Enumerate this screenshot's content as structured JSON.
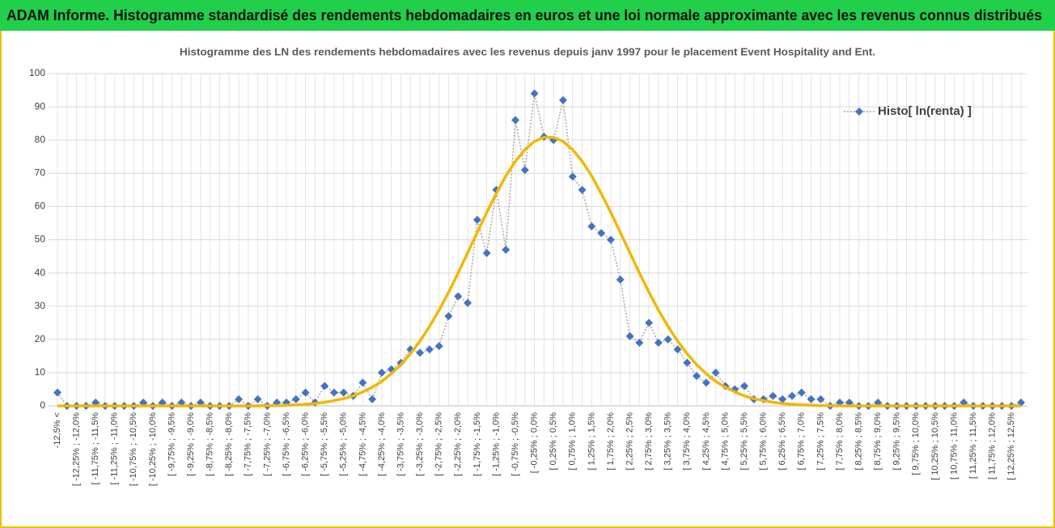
{
  "header": {
    "title": "ADAM Informe. Histogramme standardisé des rendements hebdomadaires en euros et une loi normale approximante avec les revenus connus distribués"
  },
  "chart_data": {
    "type": "line",
    "title": "Histogramme des LN des rendements hebdomadaires avec les revenus depuis janv 1997 pour le placement Event Hospitality  and Ent.",
    "categories": [
      "-12,5% <",
      null,
      "[ -12,25% ; -12,0%",
      null,
      "[ -11,75% ; -11,5%",
      null,
      "[ -11,25% ; -11,0%",
      null,
      "[ -10,75% ; -10,5%",
      null,
      "[ -10,25% ; -10,0%",
      null,
      "[ -9,75% ; -9,5%",
      null,
      "[ -9,25% ; -9,0%",
      null,
      "[ -8,75% ; -8,5%",
      null,
      "[ -8,25% ; -8,0%",
      null,
      "[ -7,75% ; -7,5%",
      null,
      "[ -7,25% ; -7,0%",
      null,
      "[ -6,75% ; -6,5%",
      null,
      "[ -6,25% ; -6,0%",
      null,
      "[ -5,75% ; -5,5%",
      null,
      "[ -5,25% ; -5,0%",
      null,
      "[ -4,75% ; -4,5%",
      null,
      "[ -4,25% ; -4,0%",
      null,
      "[ -3,75% ; -3,5%",
      null,
      "[ -3,25% ; -3,0%",
      null,
      "[ -2,75% ; -2,5%",
      null,
      "[ -2,25% ; -2,0%",
      null,
      "[ -1,75% ; -1,5%",
      null,
      "[ -1,25% ; -1,0%",
      null,
      "[ -0,75% ; -0,5%",
      null,
      "[ -0,25% ; 0,0%",
      null,
      "[ 0,25% ; 0,5%",
      null,
      "[ 0,75% ; 1,0%",
      null,
      "[ 1,25% ; 1,5%",
      null,
      "[ 1,75% ; 2,0%",
      null,
      "[ 2,25% ; 2,5%",
      null,
      "[ 2,75% ; 3,0%",
      null,
      "[ 3,25% ; 3,5%",
      null,
      "[ 3,75% ; 4,0%",
      null,
      "[ 4,25% ; 4,5%",
      null,
      "[ 4,75% ; 5,0%",
      null,
      "[ 5,25% ; 5,5%",
      null,
      "[ 5,75% ; 6,0%",
      null,
      "[ 6,25% ; 6,5%",
      null,
      "[ 6,75% ; 7,0%",
      null,
      "[ 7,25% ; 7,5%",
      null,
      "[ 7,75% ; 8,0%",
      null,
      "[ 8,25% ; 8,5%",
      null,
      "[ 8,75% ; 9,0%",
      null,
      "[ 9,25% ; 9,5%",
      null,
      "[ 9,75% ; 10,0%",
      null,
      "[ 10,25% ; 10,5%",
      null,
      "[ 10,75% ; 11,0%",
      null,
      "[ 11,25% ; 11,5%",
      null,
      "[ 11,75% ; 12,0%",
      null,
      "[ 12,25% ; 12,5%",
      null
    ],
    "series": [
      {
        "name": "Histo[ ln(renta) ]",
        "color": "#4472c4",
        "values": [
          4,
          0,
          0,
          0,
          1,
          0,
          0,
          0,
          0,
          1,
          0,
          1,
          0,
          1,
          0,
          1,
          0,
          0,
          0,
          2,
          0,
          2,
          0,
          1,
          1,
          2,
          4,
          1,
          6,
          4,
          4,
          3,
          7,
          2,
          10,
          11,
          13,
          17,
          16,
          17,
          18,
          27,
          33,
          31,
          56,
          46,
          65,
          47,
          86,
          71,
          94,
          81,
          80,
          92,
          69,
          65,
          54,
          52,
          50,
          38,
          21,
          19,
          25,
          19,
          20,
          17,
          13,
          9,
          7,
          10,
          6,
          5,
          6,
          2,
          2,
          3,
          2,
          3,
          4,
          2,
          2,
          0,
          1,
          1,
          0,
          0,
          1,
          0,
          0,
          0,
          0,
          0,
          0,
          0,
          0,
          1,
          0,
          0,
          0,
          0,
          0,
          1
        ]
      },
      {
        "color": "#f2b705",
        "values": [
          0,
          0,
          0,
          0,
          0,
          0,
          0,
          0,
          0,
          0,
          0,
          0,
          0,
          0,
          0,
          0,
          0,
          0,
          0,
          0,
          0,
          0,
          0.1,
          0.1,
          0.2,
          0.3,
          0.5,
          0.7,
          1.1,
          1.6,
          2.2,
          3.0,
          4.2,
          5.6,
          7.4,
          9.7,
          12.4,
          15.7,
          19.5,
          23.9,
          28.8,
          34.2,
          40.0,
          46.1,
          52.2,
          58.2,
          63.9,
          69.2,
          73.6,
          77.1,
          79.6,
          80.8,
          80.8,
          79.6,
          77.1,
          73.6,
          69.2,
          63.9,
          58.2,
          52.2,
          46.1,
          40.0,
          34.2,
          28.8,
          23.9,
          19.5,
          15.7,
          12.4,
          9.7,
          7.4,
          5.6,
          4.2,
          3.0,
          2.2,
          1.6,
          1.1,
          0.7,
          0.5,
          0.3,
          0.2,
          0.1,
          0.1,
          0,
          0,
          0,
          0,
          0,
          0,
          0,
          0,
          0,
          0,
          0,
          0,
          0,
          0,
          0,
          0,
          0,
          0,
          0,
          0
        ]
      }
    ],
    "ylim": [
      0,
      100
    ],
    "yticks": [
      0,
      10,
      20,
      30,
      40,
      50,
      60,
      70,
      80,
      90,
      100
    ],
    "grid": true,
    "legend": "top-right"
  }
}
